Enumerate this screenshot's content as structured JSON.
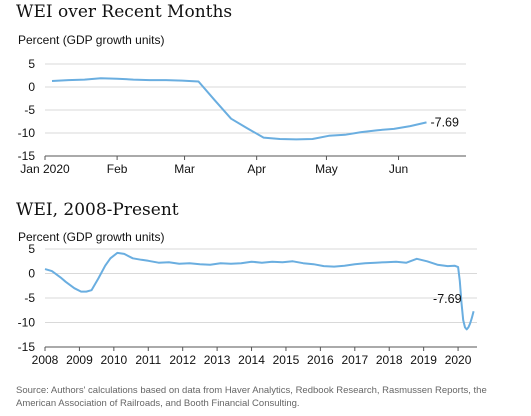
{
  "source_note": "Source: Authors' calculations based on data from Haver Analytics, Redbook Research, Rasmussen Reports, the American Association of Railroads, and Booth Financial Consulting.",
  "chart_data": [
    {
      "type": "line",
      "title": "WEI over Recent Months",
      "ylabel": "Percent (GDP growth units)",
      "xlabel": "",
      "ylim": [
        -15,
        5
      ],
      "yticks": [
        5,
        0,
        -5,
        -10,
        -15
      ],
      "xlim": [
        "2020-01-01",
        "2020-06-30"
      ],
      "xticks": [
        {
          "label": "Jan 2020",
          "at": "2020-01-01"
        },
        {
          "label": "Feb",
          "at": "2020-02-01"
        },
        {
          "label": "Mar",
          "at": "2020-03-01"
        },
        {
          "label": "Apr",
          "at": "2020-04-01"
        },
        {
          "label": "May",
          "at": "2020-05-01"
        },
        {
          "label": "Jun",
          "at": "2020-06-01"
        }
      ],
      "grid": true,
      "line_color": "#6aaee0",
      "annotation": {
        "text": "-7.69",
        "at": "2020-06-13",
        "value": -7.69
      },
      "series": [
        {
          "x": [
            "2020-01-04",
            "2020-01-11",
            "2020-01-18",
            "2020-01-25",
            "2020-02-01",
            "2020-02-08",
            "2020-02-15",
            "2020-02-22",
            "2020-02-29",
            "2020-03-07",
            "2020-03-14",
            "2020-03-21",
            "2020-03-28",
            "2020-04-04",
            "2020-04-11",
            "2020-04-18",
            "2020-04-25",
            "2020-05-02",
            "2020-05-09",
            "2020-05-16",
            "2020-05-23",
            "2020-05-30",
            "2020-06-06",
            "2020-06-13"
          ],
          "values": [
            1.3,
            1.5,
            1.6,
            1.9,
            1.8,
            1.6,
            1.5,
            1.5,
            1.4,
            1.2,
            -2.9,
            -6.9,
            -9.0,
            -11.0,
            -11.3,
            -11.4,
            -11.3,
            -10.6,
            -10.4,
            -9.8,
            -9.4,
            -9.1,
            -8.5,
            -7.69
          ]
        }
      ]
    },
    {
      "type": "line",
      "title": "WEI, 2008-Present",
      "ylabel": "Percent (GDP growth units)",
      "xlabel": "",
      "ylim": [
        -15,
        5
      ],
      "yticks": [
        5,
        0,
        -5,
        -10,
        -15
      ],
      "xlim": [
        2008.0,
        2020.55
      ],
      "xticks": [
        {
          "label": "2008",
          "at": 2008
        },
        {
          "label": "2009",
          "at": 2009
        },
        {
          "label": "2010",
          "at": 2010
        },
        {
          "label": "2011",
          "at": 2011
        },
        {
          "label": "2012",
          "at": 2012
        },
        {
          "label": "2013",
          "at": 2013
        },
        {
          "label": "2014",
          "at": 2014
        },
        {
          "label": "2015",
          "at": 2015
        },
        {
          "label": "2016",
          "at": 2016
        },
        {
          "label": "2017",
          "at": 2017
        },
        {
          "label": "2018",
          "at": 2018
        },
        {
          "label": "2019",
          "at": 2019
        },
        {
          "label": "2020",
          "at": 2020
        }
      ],
      "grid": true,
      "line_color": "#6aaee0",
      "annotation": {
        "text": "-7.69",
        "at": 2020.45,
        "value": -7.69
      },
      "series": [
        {
          "x": [
            2008.0,
            2008.2,
            2008.45,
            2008.6,
            2008.85,
            2009.05,
            2009.2,
            2009.35,
            2009.55,
            2009.75,
            2009.9,
            2010.1,
            2010.3,
            2010.55,
            2010.8,
            2011.0,
            2011.3,
            2011.6,
            2011.9,
            2012.2,
            2012.5,
            2012.8,
            2013.1,
            2013.4,
            2013.7,
            2014.0,
            2014.3,
            2014.6,
            2014.9,
            2015.2,
            2015.5,
            2015.8,
            2016.1,
            2016.4,
            2016.7,
            2017.0,
            2017.3,
            2017.6,
            2017.9,
            2018.2,
            2018.5,
            2018.8,
            2019.1,
            2019.4,
            2019.7,
            2019.9,
            2020.0,
            2020.05,
            2020.1,
            2020.15,
            2020.2,
            2020.25,
            2020.3,
            2020.35,
            2020.4,
            2020.45
          ],
          "values": [
            0.9,
            0.5,
            -0.8,
            -1.7,
            -3.0,
            -3.7,
            -3.7,
            -3.4,
            -1.0,
            1.6,
            3.1,
            4.2,
            4.0,
            3.1,
            2.8,
            2.6,
            2.2,
            2.3,
            2.0,
            2.1,
            1.9,
            1.8,
            2.1,
            2.0,
            2.1,
            2.4,
            2.2,
            2.4,
            2.3,
            2.5,
            2.1,
            1.9,
            1.5,
            1.4,
            1.6,
            1.9,
            2.1,
            2.2,
            2.3,
            2.4,
            2.2,
            3.0,
            2.5,
            1.8,
            1.5,
            1.6,
            1.3,
            -1.5,
            -6.0,
            -9.5,
            -11.0,
            -11.4,
            -11.0,
            -10.2,
            -9.1,
            -7.69
          ]
        }
      ]
    }
  ]
}
